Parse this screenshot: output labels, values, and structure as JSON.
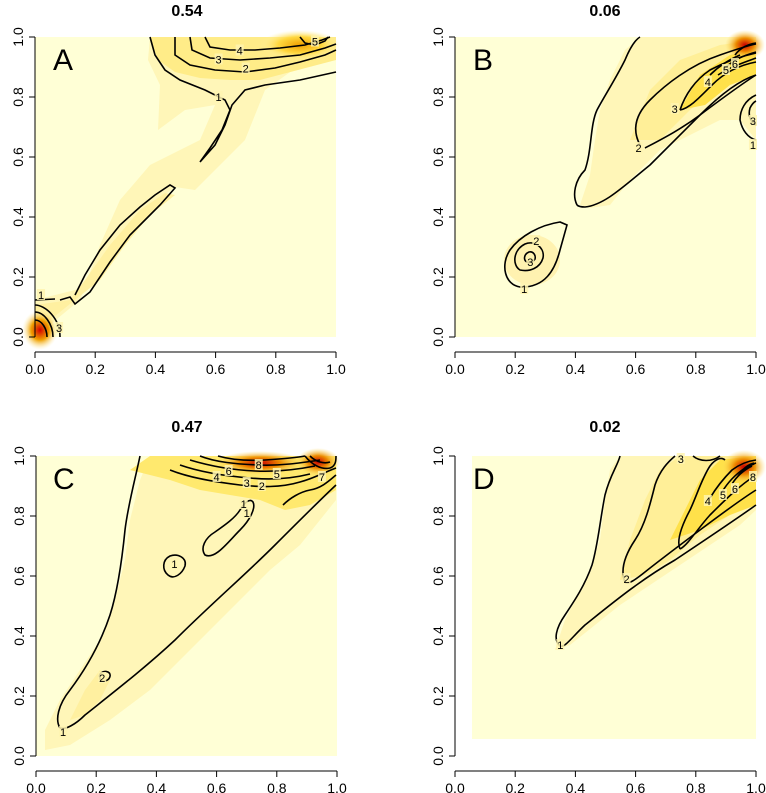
{
  "chart_data": [
    {
      "type": "contour",
      "title": "0.54",
      "letter": "A",
      "xlim": [
        0,
        1
      ],
      "ylim": [
        0,
        1
      ],
      "xticks": [
        "0.0",
        "0.2",
        "0.4",
        "0.6",
        "0.8",
        "1.0"
      ],
      "yticks": [
        "0.0",
        "0.2",
        "0.4",
        "0.6",
        "0.8",
        "1.0"
      ],
      "contour_labels": [
        {
          "text": "1",
          "x": 0.61,
          "y": 0.8
        },
        {
          "text": "2",
          "x": 0.7,
          "y": 0.895
        },
        {
          "text": "3",
          "x": 0.61,
          "y": 0.925
        },
        {
          "text": "4",
          "x": 0.68,
          "y": 0.955
        },
        {
          "text": "5",
          "x": 0.93,
          "y": 0.985
        },
        {
          "text": "1",
          "x": 0.02,
          "y": 0.14
        },
        {
          "text": "3",
          "x": 0.08,
          "y": 0.03
        }
      ],
      "hotspots": [
        {
          "x": 0.02,
          "y": 0.02,
          "peak": 6
        },
        {
          "x": 0.92,
          "y": 0.98,
          "peak": 5
        }
      ]
    },
    {
      "type": "contour",
      "title": "0.06",
      "letter": "B",
      "xlim": [
        0,
        1
      ],
      "ylim": [
        0,
        1
      ],
      "xticks": [
        "0.0",
        "0.2",
        "0.4",
        "0.6",
        "0.8",
        "1.0"
      ],
      "yticks": [
        "0.0",
        "0.2",
        "0.4",
        "0.6",
        "0.8",
        "1.0"
      ],
      "contour_labels": [
        {
          "text": "1",
          "x": 0.23,
          "y": 0.16
        },
        {
          "text": "2",
          "x": 0.27,
          "y": 0.32
        },
        {
          "text": "3",
          "x": 0.25,
          "y": 0.25
        },
        {
          "text": "2",
          "x": 0.61,
          "y": 0.63
        },
        {
          "text": "3",
          "x": 0.73,
          "y": 0.76
        },
        {
          "text": "4",
          "x": 0.84,
          "y": 0.85
        },
        {
          "text": "5",
          "x": 0.9,
          "y": 0.89
        },
        {
          "text": "6",
          "x": 0.93,
          "y": 0.91
        },
        {
          "text": "3",
          "x": 0.99,
          "y": 0.72
        },
        {
          "text": "1",
          "x": 0.99,
          "y": 0.64
        }
      ],
      "hotspots": [
        {
          "x": 0.96,
          "y": 0.97,
          "peak": 8
        }
      ]
    },
    {
      "type": "contour",
      "title": "0.47",
      "letter": "C",
      "xlim": [
        0,
        1
      ],
      "ylim": [
        0,
        1
      ],
      "xticks": [
        "0.0",
        "0.2",
        "0.4",
        "0.6",
        "0.8",
        "1.0"
      ],
      "yticks": [
        "0.0",
        "0.2",
        "0.4",
        "0.6",
        "0.8",
        "1.0"
      ],
      "contour_labels": [
        {
          "text": "1",
          "x": 0.09,
          "y": 0.08
        },
        {
          "text": "2",
          "x": 0.22,
          "y": 0.26
        },
        {
          "text": "1",
          "x": 0.46,
          "y": 0.64
        },
        {
          "text": "1",
          "x": 0.7,
          "y": 0.81
        },
        {
          "text": "1",
          "x": 0.69,
          "y": 0.84
        },
        {
          "text": "2",
          "x": 0.75,
          "y": 0.9
        },
        {
          "text": "3",
          "x": 0.7,
          "y": 0.91
        },
        {
          "text": "4",
          "x": 0.6,
          "y": 0.93
        },
        {
          "text": "5",
          "x": 0.8,
          "y": 0.94
        },
        {
          "text": "6",
          "x": 0.64,
          "y": 0.95
        },
        {
          "text": "8",
          "x": 0.74,
          "y": 0.97
        },
        {
          "text": "7",
          "x": 0.95,
          "y": 0.93
        }
      ],
      "hotspots": [
        {
          "x": 0.75,
          "y": 0.98,
          "peak": 9
        },
        {
          "x": 0.95,
          "y": 0.97,
          "peak": 8
        }
      ]
    },
    {
      "type": "contour",
      "title": "0.02",
      "letter": "D",
      "xlim": [
        0,
        1
      ],
      "ylim": [
        0,
        1
      ],
      "xticks": [
        "0.0",
        "0.2",
        "0.4",
        "0.6",
        "0.8",
        "1.0"
      ],
      "yticks": [
        "0.0",
        "0.2",
        "0.4",
        "0.6",
        "0.8",
        "1.0"
      ],
      "contour_labels": [
        {
          "text": "1",
          "x": 0.35,
          "y": 0.37
        },
        {
          "text": "2",
          "x": 0.57,
          "y": 0.59
        },
        {
          "text": "3",
          "x": 0.75,
          "y": 0.99
        },
        {
          "text": "4",
          "x": 0.84,
          "y": 0.85
        },
        {
          "text": "5",
          "x": 0.89,
          "y": 0.87
        },
        {
          "text": "6",
          "x": 0.93,
          "y": 0.89
        },
        {
          "text": "8",
          "x": 0.99,
          "y": 0.93
        }
      ],
      "hotspots": [
        {
          "x": 0.96,
          "y": 0.97,
          "peak": 9
        }
      ]
    }
  ]
}
